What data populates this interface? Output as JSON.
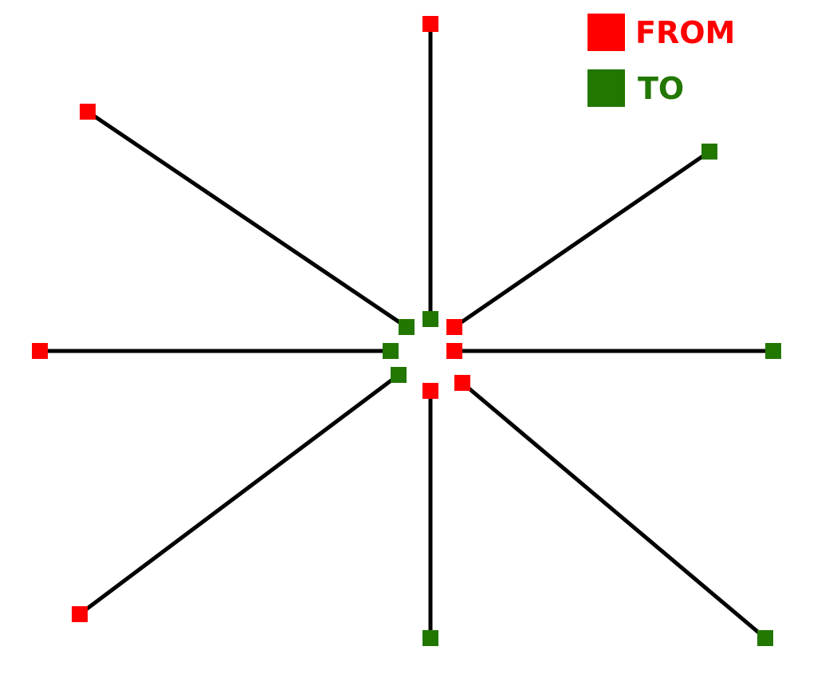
{
  "legend": {
    "from_label": "FROM",
    "to_label": "TO"
  },
  "colors": {
    "from": "#ff0000",
    "to": "#227700",
    "edge": "#000000",
    "background": "#ffffff"
  }
}
